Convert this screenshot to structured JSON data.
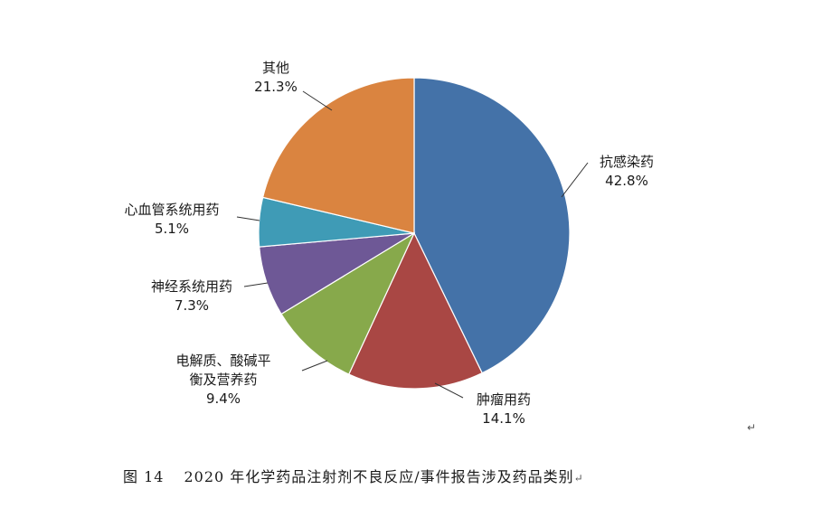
{
  "chart_data": {
    "type": "pie",
    "title": "",
    "slices": [
      {
        "label": "抗感染药",
        "label_lines": [
          "抗感染药"
        ],
        "value": 42.8,
        "pct_text": "42.8%",
        "color": "#4472A8"
      },
      {
        "label": "肿瘤用药",
        "label_lines": [
          "肿瘤用药"
        ],
        "value": 14.1,
        "pct_text": "14.1%",
        "color": "#A94744"
      },
      {
        "label": "电解质、酸碱平衡及营养药",
        "label_lines": [
          "电解质、酸碱平",
          "衡及营养药"
        ],
        "value": 9.4,
        "pct_text": "9.4%",
        "color": "#87A94B"
      },
      {
        "label": "神经系统用药",
        "label_lines": [
          "神经系统用药"
        ],
        "value": 7.3,
        "pct_text": "7.3%",
        "color": "#6E5896"
      },
      {
        "label": "心血管系统用药",
        "label_lines": [
          "心血管系统用药"
        ],
        "value": 5.1,
        "pct_text": "5.1%",
        "color": "#3F9BB6"
      },
      {
        "label": "其他",
        "label_lines": [
          "其他"
        ],
        "value": 21.3,
        "pct_text": "21.3%",
        "color": "#DA8440"
      }
    ]
  },
  "caption": {
    "number": "图 14",
    "text": "2020 年化学药品注射剂不良反应/事件报告涉及药品类别"
  },
  "marks": {
    "paragraph_mark": "↵"
  }
}
